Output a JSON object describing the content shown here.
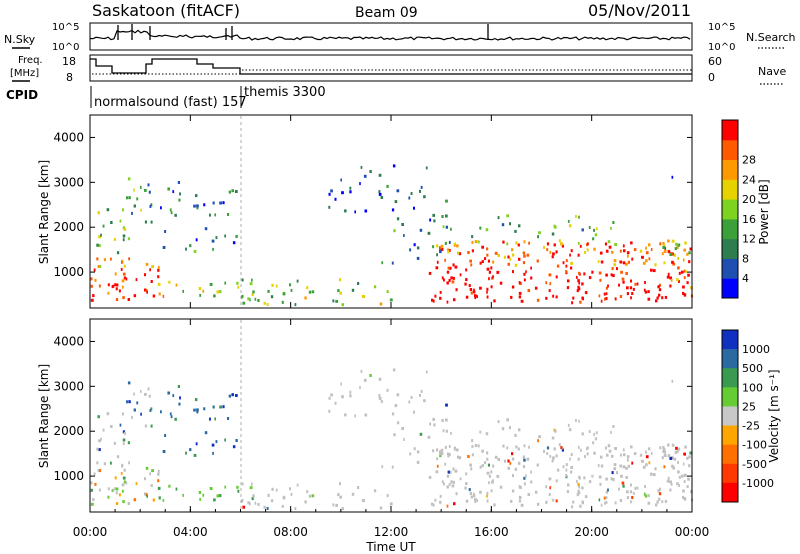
{
  "header": {
    "station": "Saskatoon (fitACF)",
    "beam": "Beam 09",
    "date": "05/Nov/2011"
  },
  "status_panels": {
    "nsky_label": "N.Sky",
    "nsearch_label": "N.Search",
    "nsky_ticks": [
      "10^5",
      "10^0"
    ],
    "nsearch_ticks": [
      "10^5",
      "10^0"
    ],
    "freq_label_1": "Freq.",
    "freq_label_2": "[MHz]",
    "freq_ticks": [
      "18",
      "8"
    ],
    "nave_label": "Nave",
    "nave_ticks": [
      "60",
      "0"
    ],
    "cpid_label": "CPID",
    "cpid_1": "normalsound (fast) 157",
    "cpid_2": "themis 3300"
  },
  "colors": {
    "power": [
      "#0000ff",
      "#1f4fb0",
      "#2e7d4f",
      "#3ba03a",
      "#7ed321",
      "#e6d200",
      "#ff9900",
      "#ff5a00",
      "#ff0000"
    ],
    "velocity": [
      "#1030c0",
      "#2a6aa0",
      "#3a9a50",
      "#66cc33",
      "#c8c8c8",
      "#ffa500",
      "#ff7000",
      "#ff3a00",
      "#ff0000"
    ],
    "ground_scatter": "#c0c0c0"
  },
  "chart_data": [
    {
      "type": "heatmap",
      "panel": "power",
      "ylabel": "Slant Range [km]",
      "yticks": [
        "1000",
        "2000",
        "3000",
        "4000"
      ],
      "ylim": [
        200,
        4500
      ],
      "colorbar_label": "Power [dB]",
      "colorbar_ticks": [
        "4",
        "8",
        "12",
        "16",
        "20",
        "24",
        "28"
      ]
    },
    {
      "type": "heatmap",
      "panel": "velocity",
      "ylabel": "Slant Range [km]",
      "yticks": [
        "1000",
        "2000",
        "3000",
        "4000"
      ],
      "ylim": [
        200,
        4500
      ],
      "colorbar_label": "Velocity [m s⁻¹]",
      "colorbar_ticks": [
        "1000",
        "500",
        "100",
        "25",
        "-25",
        "-100",
        "-500",
        "-1000"
      ],
      "xlabel": "Time UT",
      "xticks": [
        "00:00",
        "04:00",
        "08:00",
        "12:00",
        "16:00",
        "20:00",
        "00:00"
      ],
      "xlim_hours": [
        0,
        24
      ]
    }
  ]
}
